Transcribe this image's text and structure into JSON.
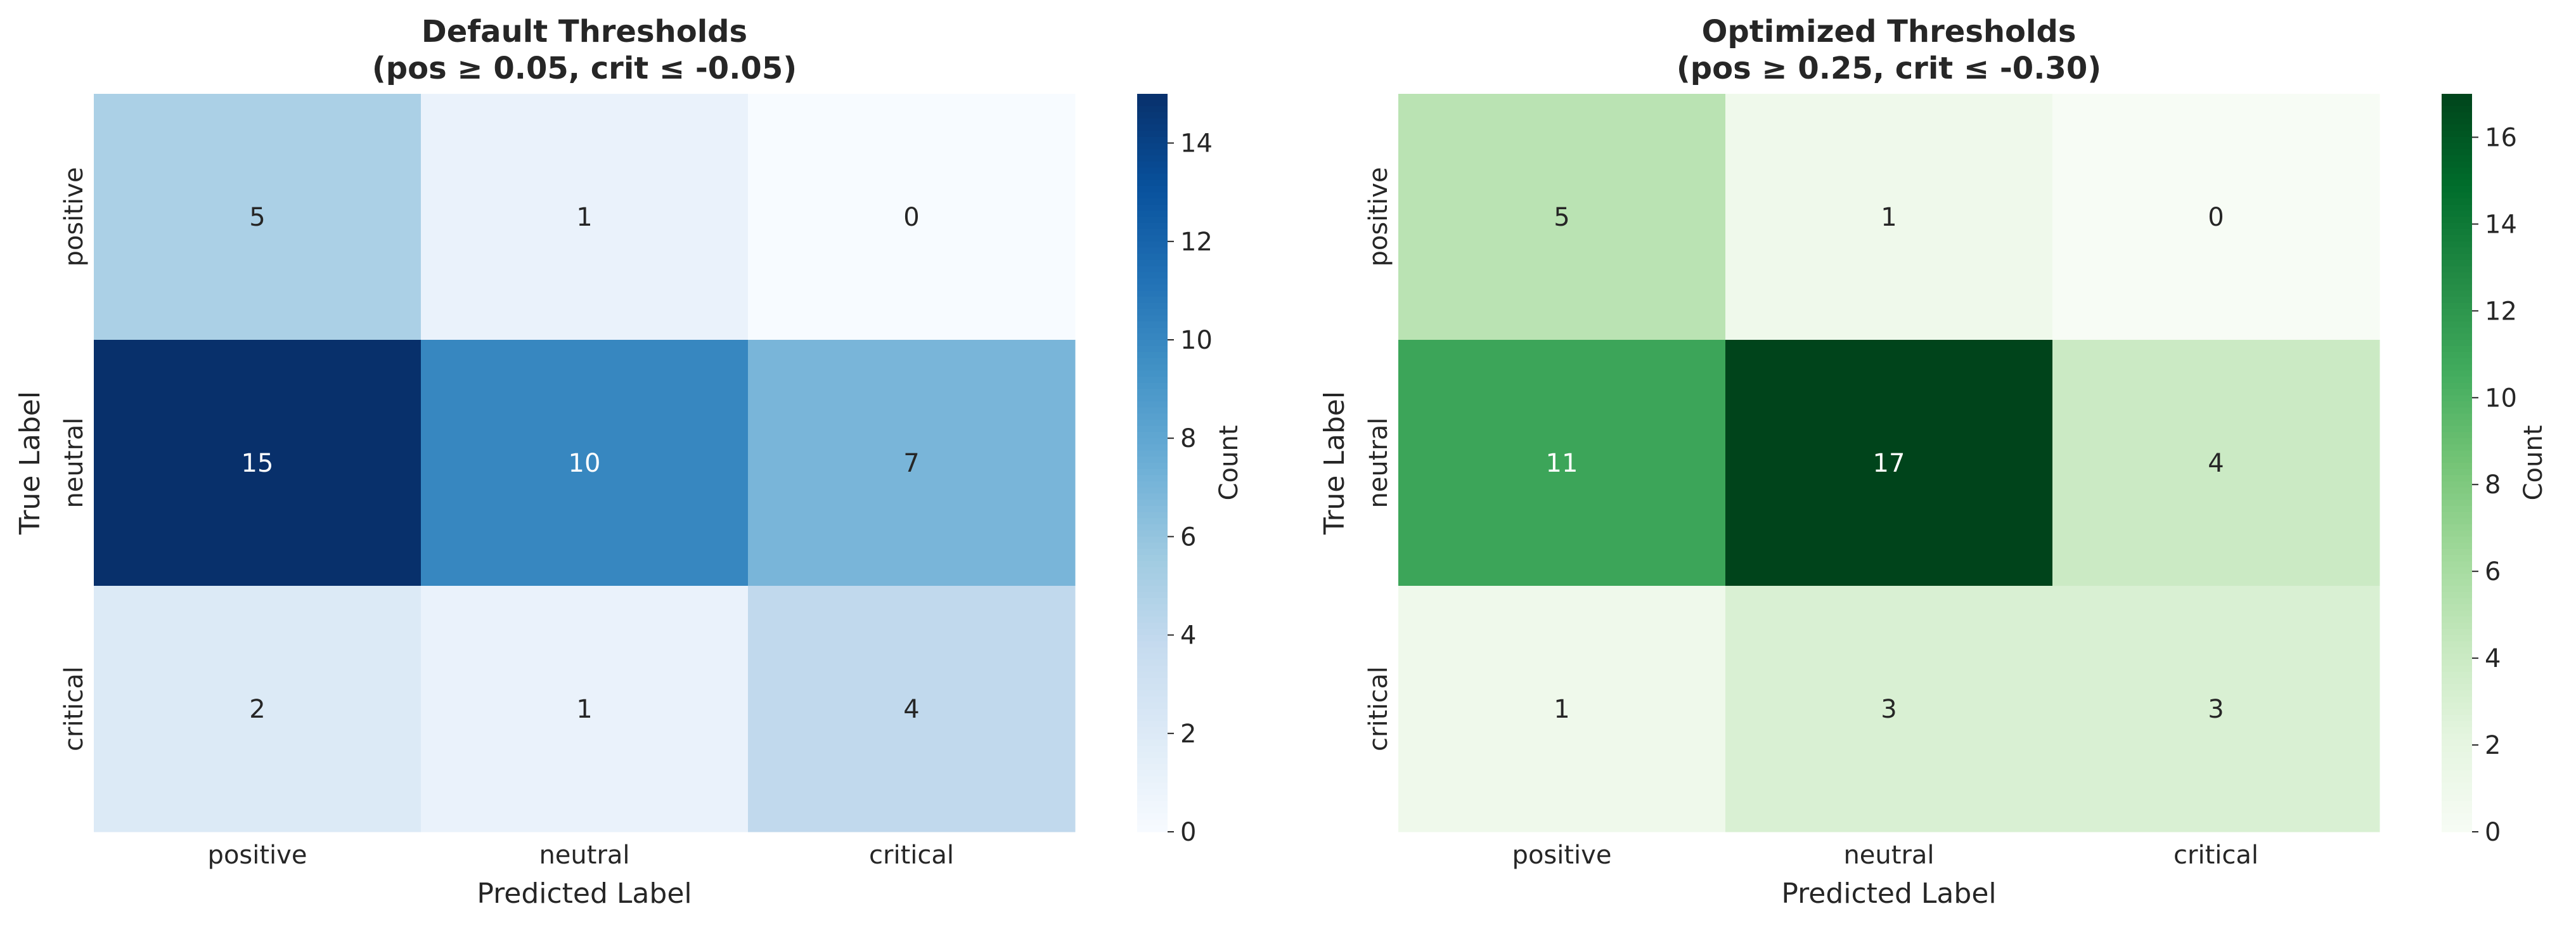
{
  "chart_data": [
    {
      "type": "heatmap",
      "title": "Default Thresholds",
      "subtitle": "(pos ≥ 0.05, crit ≤ -0.05)",
      "xlabel": "Predicted Label",
      "ylabel": "True Label",
      "x_categories": [
        "positive",
        "neutral",
        "critical"
      ],
      "y_categories": [
        "positive",
        "neutral",
        "critical"
      ],
      "values": [
        [
          5,
          1,
          0
        ],
        [
          15,
          10,
          7
        ],
        [
          2,
          1,
          4
        ]
      ],
      "colormap": "Blues",
      "colormap_low": "#f7fbff",
      "colormap_high": "#08306b",
      "vmin": 0,
      "vmax": 15,
      "colorbar_label": "Count",
      "colorbar_ticks": [
        0,
        2,
        4,
        6,
        8,
        10,
        12,
        14
      ]
    },
    {
      "type": "heatmap",
      "title": "Optimized Thresholds",
      "subtitle": "(pos ≥ 0.25, crit ≤ -0.30)",
      "xlabel": "Predicted Label",
      "ylabel": "True Label",
      "x_categories": [
        "positive",
        "neutral",
        "critical"
      ],
      "y_categories": [
        "positive",
        "neutral",
        "critical"
      ],
      "values": [
        [
          5,
          1,
          0
        ],
        [
          11,
          17,
          4
        ],
        [
          1,
          3,
          3
        ]
      ],
      "colormap": "Greens",
      "colormap_low": "#f7fcf5",
      "colormap_high": "#00441b",
      "vmin": 0,
      "vmax": 17,
      "colorbar_label": "Count",
      "colorbar_ticks": [
        0,
        2,
        4,
        6,
        8,
        10,
        12,
        14,
        16
      ]
    }
  ]
}
